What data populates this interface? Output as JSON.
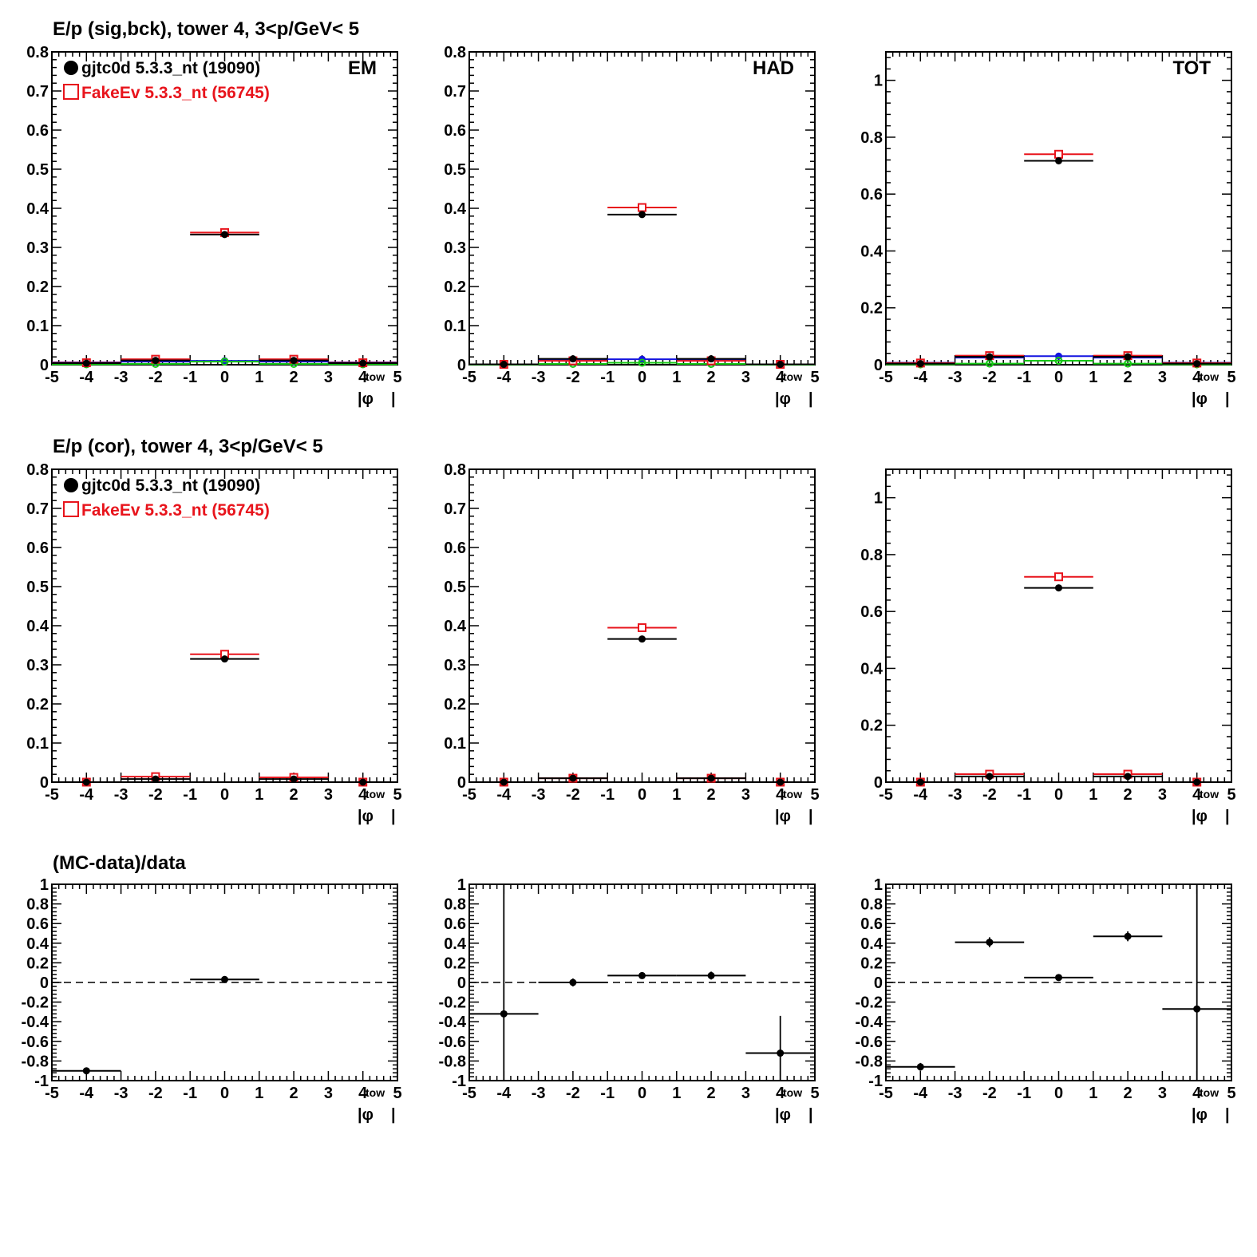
{
  "colors": {
    "data": "#000000",
    "mc": "#e8141c",
    "blue": "#1414e0",
    "green": "#16c816"
  },
  "rows": [
    {
      "title": "E/p (sig,bck), tower 4,  3<p/GeV< 5"
    },
    {
      "title": "E/p (cor), tower 4,  3<p/GeV< 5"
    },
    {
      "title": "(MC-data)/data"
    }
  ],
  "legend": {
    "data_label": "gjtc0d 5.3.3_nt (19090)",
    "mc_label": "FakeEv 5.3.3_nt (56745)"
  },
  "axis": {
    "x_title_main": "|φ",
    "x_title_sub": "tow",
    "x_title_end": "|"
  },
  "chart_data": [
    {
      "id": "sigbck-EM",
      "type": "scatter",
      "label": "EM",
      "xlim": [
        -5,
        5
      ],
      "ylim": [
        0,
        0.8
      ],
      "yticks": [
        0,
        0.1,
        0.2,
        0.3,
        0.4,
        0.5,
        0.6,
        0.7,
        0.8
      ],
      "xticks": [
        -5,
        -4,
        -3,
        -2,
        -1,
        0,
        1,
        2,
        3,
        4,
        5
      ],
      "series": [
        {
          "name": "gjtc0d 5.3.3_nt (19090)",
          "color": "data",
          "marker": "circle",
          "x": [
            -4,
            -2,
            0,
            2,
            4
          ],
          "y": [
            0.004,
            0.011,
            0.333,
            0.011,
            0.004
          ],
          "xerr": 1
        },
        {
          "name": "FakeEv 5.3.3_nt (56745)",
          "color": "mc",
          "marker": "square",
          "x": [
            -4,
            -2,
            0,
            2,
            4
          ],
          "y": [
            0.005,
            0.014,
            0.338,
            0.014,
            0.005
          ],
          "xerr": 1
        },
        {
          "color": "blue",
          "marker": "circle",
          "x": [
            -4,
            -2,
            0,
            2,
            4
          ],
          "y": [
            0.006,
            0.008,
            0.01,
            0.008,
            0.006
          ],
          "xerr": 1
        },
        {
          "color": "green",
          "marker": "open",
          "x": [
            -4,
            -2,
            0,
            2,
            4
          ],
          "y": [
            0.001,
            0.002,
            0.008,
            0.002,
            0.001
          ],
          "xerr": 1
        }
      ]
    },
    {
      "id": "sigbck-HAD",
      "type": "scatter",
      "label": "HAD",
      "xlim": [
        -5,
        5
      ],
      "ylim": [
        0,
        0.8
      ],
      "yticks": [
        0,
        0.1,
        0.2,
        0.3,
        0.4,
        0.5,
        0.6,
        0.7,
        0.8
      ],
      "xticks": [
        -5,
        -4,
        -3,
        -2,
        -1,
        0,
        1,
        2,
        3,
        4,
        5
      ],
      "series": [
        {
          "name": "gjtc0d 5.3.3_nt (19090)",
          "color": "data",
          "marker": "circle",
          "x": [
            -4,
            -2,
            0,
            2,
            4
          ],
          "y": [
            0.001,
            0.015,
            0.384,
            0.015,
            0.001
          ],
          "xerr": 1
        },
        {
          "name": "FakeEv 5.3.3_nt (56745)",
          "color": "mc",
          "marker": "square",
          "x": [
            -4,
            -2,
            0,
            2,
            4
          ],
          "y": [
            0.001,
            0.01,
            0.402,
            0.01,
            0.001
          ],
          "xerr": 1
        },
        {
          "color": "blue",
          "marker": "circle",
          "x": [
            -4,
            -2,
            0,
            2,
            4
          ],
          "y": [
            0.001,
            0.012,
            0.014,
            0.012,
            0.001
          ],
          "xerr": 1
        },
        {
          "color": "green",
          "marker": "open",
          "x": [
            -4,
            -2,
            0,
            2,
            4
          ],
          "y": [
            0.0,
            0.002,
            0.005,
            0.002,
            0.0
          ],
          "xerr": 1
        }
      ]
    },
    {
      "id": "sigbck-TOT",
      "type": "scatter",
      "label": "TOT",
      "xlim": [
        -5,
        5
      ],
      "ylim": [
        0,
        1.1
      ],
      "yticks": [
        0,
        0.2,
        0.4,
        0.6,
        0.8,
        1
      ],
      "xticks": [
        -5,
        -4,
        -3,
        -2,
        -1,
        0,
        1,
        2,
        3,
        4,
        5
      ],
      "series": [
        {
          "name": "gjtc0d 5.3.3_nt (19090)",
          "color": "data",
          "marker": "circle",
          "x": [
            -4,
            -2,
            0,
            2,
            4
          ],
          "y": [
            0.004,
            0.028,
            0.717,
            0.028,
            0.004
          ],
          "xerr": 1
        },
        {
          "name": "FakeEv 5.3.3_nt (56745)",
          "color": "mc",
          "marker": "square",
          "x": [
            -4,
            -2,
            0,
            2,
            4
          ],
          "y": [
            0.006,
            0.032,
            0.74,
            0.032,
            0.006
          ],
          "xerr": 1
        },
        {
          "color": "blue",
          "marker": "circle",
          "x": [
            -4,
            -2,
            0,
            2,
            4
          ],
          "y": [
            0.007,
            0.025,
            0.03,
            0.025,
            0.007
          ],
          "xerr": 1
        },
        {
          "color": "green",
          "marker": "open",
          "x": [
            -4,
            -2,
            0,
            2,
            4
          ],
          "y": [
            0.001,
            0.004,
            0.014,
            0.004,
            0.001
          ],
          "xerr": 1
        }
      ]
    },
    {
      "id": "cor-EM",
      "type": "scatter",
      "xlim": [
        -5,
        5
      ],
      "ylim": [
        0,
        0.8
      ],
      "yticks": [
        0,
        0.1,
        0.2,
        0.3,
        0.4,
        0.5,
        0.6,
        0.7,
        0.8
      ],
      "xticks": [
        -5,
        -4,
        -3,
        -2,
        -1,
        0,
        1,
        2,
        3,
        4,
        5
      ],
      "series": [
        {
          "name": "gjtc0d 5.3.3_nt (19090)",
          "color": "data",
          "marker": "circle",
          "x": [
            -4,
            -2,
            0,
            2,
            4
          ],
          "y": [
            0.0,
            0.008,
            0.315,
            0.008,
            0.0
          ],
          "xerr": 1
        },
        {
          "name": "FakeEv 5.3.3_nt (56745)",
          "color": "mc",
          "marker": "square",
          "x": [
            -4,
            -2,
            0,
            2,
            4
          ],
          "y": [
            0.0,
            0.014,
            0.327,
            0.012,
            0.0
          ],
          "xerr": 1
        }
      ]
    },
    {
      "id": "cor-HAD",
      "type": "scatter",
      "xlim": [
        -5,
        5
      ],
      "ylim": [
        0,
        0.8
      ],
      "yticks": [
        0,
        0.1,
        0.2,
        0.3,
        0.4,
        0.5,
        0.6,
        0.7,
        0.8
      ],
      "xticks": [
        -5,
        -4,
        -3,
        -2,
        -1,
        0,
        1,
        2,
        3,
        4,
        5
      ],
      "series": [
        {
          "name": "gjtc0d 5.3.3_nt (19090)",
          "color": "data",
          "marker": "circle",
          "x": [
            -4,
            -2,
            0,
            2,
            4
          ],
          "y": [
            0.0,
            0.01,
            0.366,
            0.01,
            0.0
          ],
          "xerr": 1
        },
        {
          "name": "FakeEv 5.3.3_nt (56745)",
          "color": "mc",
          "marker": "square",
          "x": [
            -4,
            -2,
            0,
            2,
            4
          ],
          "y": [
            0.0,
            0.01,
            0.395,
            0.01,
            0.0
          ],
          "xerr": 1
        }
      ]
    },
    {
      "id": "cor-TOT",
      "type": "scatter",
      "xlim": [
        -5,
        5
      ],
      "ylim": [
        0,
        1.1
      ],
      "yticks": [
        0,
        0.2,
        0.4,
        0.6,
        0.8,
        1
      ],
      "xticks": [
        -5,
        -4,
        -3,
        -2,
        -1,
        0,
        1,
        2,
        3,
        4,
        5
      ],
      "series": [
        {
          "name": "gjtc0d 5.3.3_nt (19090)",
          "color": "data",
          "marker": "circle",
          "x": [
            -4,
            -2,
            0,
            2,
            4
          ],
          "y": [
            0.0,
            0.02,
            0.683,
            0.02,
            0.0
          ],
          "xerr": 1
        },
        {
          "name": "FakeEv 5.3.3_nt (56745)",
          "color": "mc",
          "marker": "square",
          "x": [
            -4,
            -2,
            0,
            2,
            4
          ],
          "y": [
            0.0,
            0.028,
            0.722,
            0.028,
            0.0
          ],
          "xerr": 1
        }
      ]
    },
    {
      "id": "ratio-EM",
      "type": "scatter",
      "xlim": [
        -5,
        5
      ],
      "ylim": [
        -1,
        1
      ],
      "yticks": [
        -1,
        -0.8,
        -0.6,
        -0.4,
        -0.2,
        0,
        0.2,
        0.4,
        0.6,
        0.8,
        1
      ],
      "ytick_labels": [
        "-1",
        "-0.8",
        "-0.6",
        "-0.4",
        "-0.2",
        "0",
        "0.2",
        "0.4",
        "0.6",
        "0.8",
        "1"
      ],
      "xticks": [
        -5,
        -4,
        -3,
        -2,
        -1,
        0,
        1,
        2,
        3,
        4,
        5
      ],
      "reference_line": 0,
      "series": [
        {
          "color": "data",
          "marker": "circle",
          "x": [
            -4,
            0
          ],
          "y": [
            -0.9,
            0.03
          ],
          "xerr": 1,
          "yerr": [
            0.0,
            0.01
          ]
        }
      ]
    },
    {
      "id": "ratio-HAD",
      "type": "scatter",
      "xlim": [
        -5,
        5
      ],
      "ylim": [
        -1,
        1
      ],
      "yticks": [
        -1,
        -0.8,
        -0.6,
        -0.4,
        -0.2,
        0,
        0.2,
        0.4,
        0.6,
        0.8,
        1
      ],
      "ytick_labels": [
        "-1",
        "-0.8",
        "-0.6",
        "-0.4",
        "-0.2",
        "0",
        "0.2",
        "0.4",
        "0.6",
        "0.8",
        "1"
      ],
      "xticks": [
        -5,
        -4,
        -3,
        -2,
        -1,
        0,
        1,
        2,
        3,
        4,
        5
      ],
      "reference_line": 0,
      "series": [
        {
          "color": "data",
          "marker": "circle",
          "x": [
            -4,
            -2,
            0,
            2,
            4
          ],
          "y": [
            -0.32,
            0.0,
            0.07,
            0.07,
            -0.72
          ],
          "xerr": 1,
          "yerr": [
            1.4,
            0.04,
            0.02,
            0.04,
            0.38
          ]
        }
      ]
    },
    {
      "id": "ratio-TOT",
      "type": "scatter",
      "xlim": [
        -5,
        5
      ],
      "ylim": [
        -1,
        1
      ],
      "yticks": [
        -1,
        -0.8,
        -0.6,
        -0.4,
        -0.2,
        0,
        0.2,
        0.4,
        0.6,
        0.8,
        1
      ],
      "ytick_labels": [
        "-1",
        "-0.8",
        "-0.6",
        "-0.4",
        "-0.2",
        "0",
        "0.2",
        "0.4",
        "0.6",
        "0.8",
        "1"
      ],
      "xticks": [
        -5,
        -4,
        -3,
        -2,
        -1,
        0,
        1,
        2,
        3,
        4,
        5
      ],
      "reference_line": 0,
      "series": [
        {
          "color": "data",
          "marker": "circle",
          "x": [
            -4,
            -2,
            0,
            2,
            4
          ],
          "y": [
            -0.86,
            0.41,
            0.05,
            0.47,
            -0.27
          ],
          "xerr": 1,
          "yerr": [
            0.04,
            0.05,
            0.01,
            0.05,
            1.3
          ]
        }
      ]
    }
  ]
}
